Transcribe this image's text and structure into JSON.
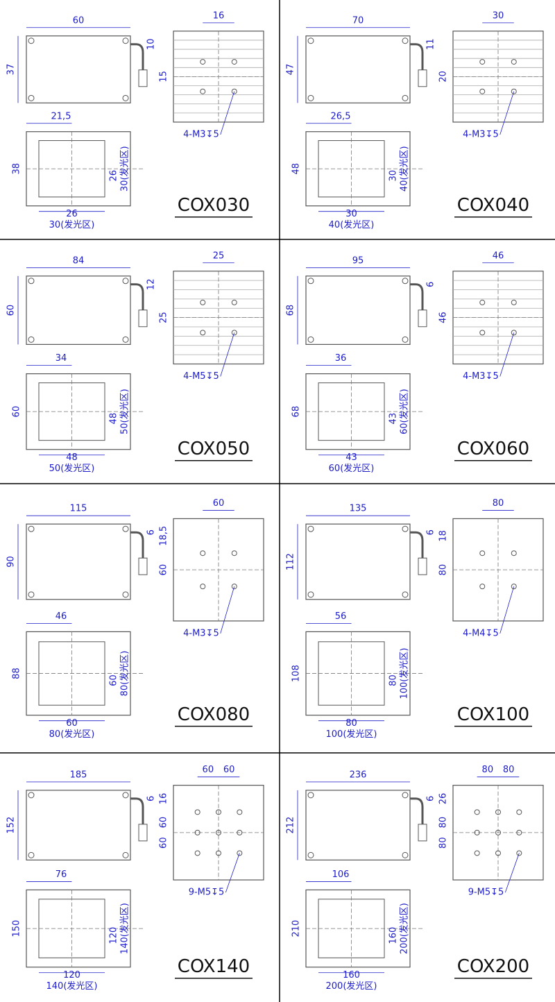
{
  "cells": [
    {
      "model": "COX030",
      "top": {
        "width": "60",
        "height": "37",
        "cable": "10"
      },
      "back": {
        "h_spacing": [
          "16"
        ],
        "v_spacing": [
          "15"
        ],
        "screw": "4-M3↧5"
      },
      "side": {
        "offset": "21,5",
        "height": "38",
        "inner_v": "26",
        "emit_v": "30(发光区)",
        "inner_h": "26",
        "emit_h": "30(发光区)"
      }
    },
    {
      "model": "COX040",
      "top": {
        "width": "70",
        "height": "47",
        "cable": "11"
      },
      "back": {
        "h_spacing": [
          "30"
        ],
        "v_spacing": [
          "20"
        ],
        "screw": "4-M3↧5"
      },
      "side": {
        "offset": "26,5",
        "height": "48",
        "inner_v": "30",
        "emit_v": "40(发光区)",
        "inner_h": "30",
        "emit_h": "40(发光区)"
      }
    },
    {
      "model": "COX050",
      "top": {
        "width": "84",
        "height": "60",
        "cable": "12"
      },
      "back": {
        "h_spacing": [
          "25"
        ],
        "v_spacing": [
          "25"
        ],
        "screw": "4-M5↧5"
      },
      "side": {
        "offset": "34",
        "height": "60",
        "inner_v": "48",
        "emit_v": "50(发光区)",
        "inner_h": "48",
        "emit_h": "50(发光区)"
      }
    },
    {
      "model": "COX060",
      "top": {
        "width": "95",
        "height": "68",
        "cable": "6"
      },
      "back": {
        "h_spacing": [
          "46"
        ],
        "v_spacing": [
          "46"
        ],
        "screw": "4-M3↧5"
      },
      "side": {
        "offset": "36",
        "height": "68",
        "inner_v": "43",
        "emit_v": "60(发光区)",
        "inner_h": "43",
        "emit_h": "60(发光区)"
      }
    },
    {
      "model": "COX080",
      "top": {
        "width": "115",
        "height": "90",
        "cable": "6"
      },
      "back": {
        "h_spacing": [
          "60"
        ],
        "v_spacing": [
          "18,5",
          "60"
        ],
        "screw": "4-M3↧5"
      },
      "side": {
        "offset": "46",
        "height": "88",
        "inner_v": "60",
        "emit_v": "80(发光区)",
        "inner_h": "60",
        "emit_h": "80(发光区)"
      }
    },
    {
      "model": "COX100",
      "top": {
        "width": "135",
        "height": "112",
        "cable": "6"
      },
      "back": {
        "h_spacing": [
          "80"
        ],
        "v_spacing": [
          "18",
          "80"
        ],
        "screw": "4-M4↧5"
      },
      "side": {
        "offset": "56",
        "height": "108",
        "inner_v": "80",
        "emit_v": "100(发光区)",
        "inner_h": "80",
        "emit_h": "100(发光区)"
      }
    },
    {
      "model": "COX140",
      "top": {
        "width": "185",
        "height": "152",
        "cable": "6"
      },
      "back": {
        "h_spacing": [
          "60",
          "60"
        ],
        "v_spacing": [
          "16",
          "60",
          "60"
        ],
        "screw": "9-M5↧5"
      },
      "side": {
        "offset": "76",
        "height": "150",
        "inner_v": "120",
        "emit_v": "140(发光区)",
        "inner_h": "120",
        "emit_h": "140(发光区)"
      }
    },
    {
      "model": "COX200",
      "top": {
        "width": "236",
        "height": "212",
        "cable": "6"
      },
      "back": {
        "h_spacing": [
          "80",
          "80"
        ],
        "v_spacing": [
          "26",
          "80",
          "80"
        ],
        "screw": "9-M5↧5"
      },
      "side": {
        "offset": "106",
        "height": "210",
        "inner_v": "160",
        "emit_v": "200(发光区)",
        "inner_h": "160",
        "emit_h": "200(发光区)"
      }
    }
  ]
}
